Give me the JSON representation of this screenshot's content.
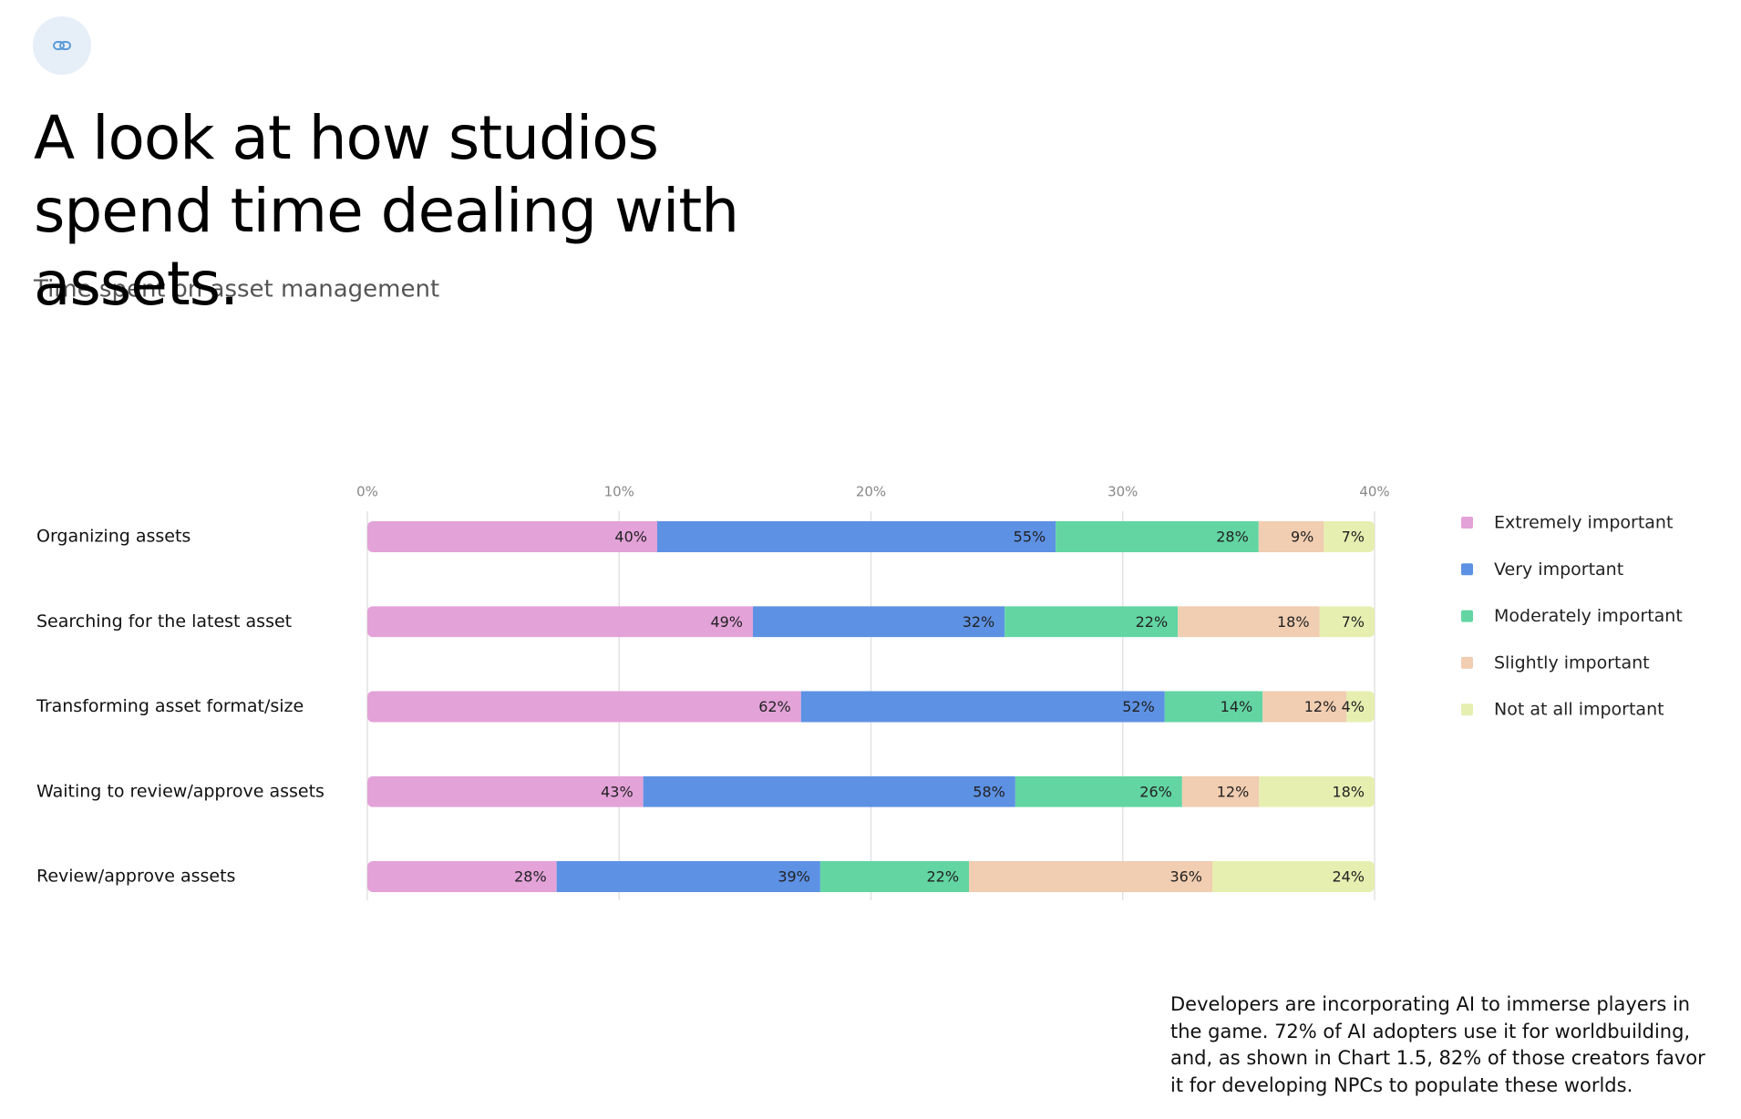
{
  "title": "A look at how studios spend time dealing with assets.",
  "footnote": "Developers are incorporating AI to immerse players in the game. 72% of AI adopters use it for worldbuilding, and, as shown in Chart 1.5, 82% of those creators favor it for developing NPCs to populate these worlds.",
  "chart_data": {
    "type": "stacked_bar_100",
    "orientation": "horizontal",
    "title": "Time spent on asset management",
    "categories": [
      "Organizing assets",
      "Searching for the latest asset",
      "Transforming asset format/size",
      "Waiting to review/approve assets",
      "Review/approve assets"
    ],
    "series": [
      {
        "name": "Extremely important",
        "color": "#e3a2d8",
        "values": [
          40,
          49,
          62,
          43,
          28
        ],
        "value_labels": [
          "40%",
          "49%",
          "62%",
          "43%",
          "28%"
        ]
      },
      {
        "name": "Very important",
        "color": "#5d91e4",
        "values": [
          55,
          32,
          52,
          58,
          39
        ],
        "value_labels": [
          "55%",
          "32%",
          "52%",
          "58%",
          "39%"
        ]
      },
      {
        "name": "Moderately important",
        "color": "#62d5a3",
        "values": [
          28,
          22,
          14,
          26,
          22
        ],
        "value_labels": [
          "28%",
          "22%",
          "14%",
          "26%",
          "22%"
        ]
      },
      {
        "name": "Slightly important",
        "color": "#f1cdb1",
        "values": [
          9,
          18,
          12,
          12,
          36
        ],
        "value_labels": [
          "9%",
          "18%",
          "12%",
          "12%",
          "36%"
        ]
      },
      {
        "name": "Not at all important",
        "color": "#e6efb0",
        "values": [
          7,
          7,
          4,
          18,
          24
        ],
        "value_labels": [
          "7%",
          "7%",
          "4%",
          "18%",
          "24%"
        ]
      }
    ],
    "xlim": [
      0,
      40
    ],
    "xticks": [
      {
        "value": 0,
        "label": "0%"
      },
      {
        "value": 10,
        "label": "10%"
      },
      {
        "value": 20,
        "label": "20%"
      },
      {
        "value": 30,
        "label": "30%"
      },
      {
        "value": 40,
        "label": "40%"
      }
    ],
    "grid": true,
    "legend": "right"
  }
}
